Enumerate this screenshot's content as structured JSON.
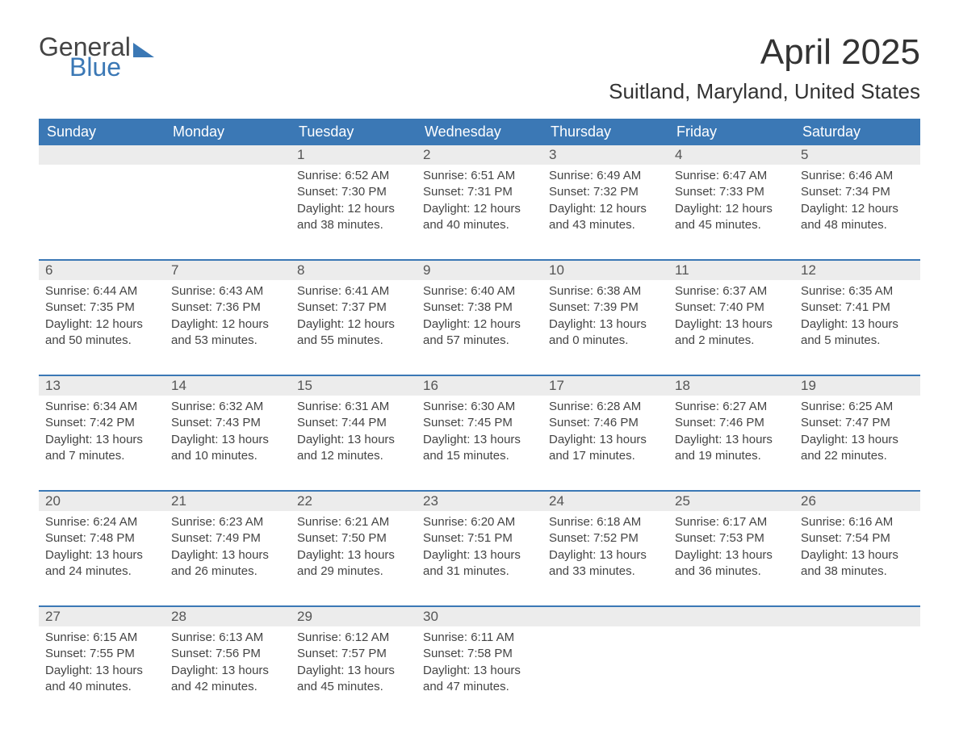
{
  "logo": {
    "word1": "General",
    "word2": "Blue",
    "color": "#3b78b5"
  },
  "title": "April 2025",
  "location": "Suitland, Maryland, United States",
  "colors": {
    "header_bg": "#3b78b5",
    "header_text": "#ffffff",
    "daynum_bg": "#ececec",
    "border": "#3b78b5",
    "text": "#444444",
    "background": "#ffffff"
  },
  "fonts": {
    "title_size": 44,
    "location_size": 26,
    "header_size": 18,
    "body_size": 15
  },
  "weekdays": [
    "Sunday",
    "Monday",
    "Tuesday",
    "Wednesday",
    "Thursday",
    "Friday",
    "Saturday"
  ],
  "weeks": [
    [
      {
        "day": "",
        "sunrise": "",
        "sunset": "",
        "daylight": ""
      },
      {
        "day": "",
        "sunrise": "",
        "sunset": "",
        "daylight": ""
      },
      {
        "day": "1",
        "sunrise": "Sunrise: 6:52 AM",
        "sunset": "Sunset: 7:30 PM",
        "daylight": "Daylight: 12 hours and 38 minutes."
      },
      {
        "day": "2",
        "sunrise": "Sunrise: 6:51 AM",
        "sunset": "Sunset: 7:31 PM",
        "daylight": "Daylight: 12 hours and 40 minutes."
      },
      {
        "day": "3",
        "sunrise": "Sunrise: 6:49 AM",
        "sunset": "Sunset: 7:32 PM",
        "daylight": "Daylight: 12 hours and 43 minutes."
      },
      {
        "day": "4",
        "sunrise": "Sunrise: 6:47 AM",
        "sunset": "Sunset: 7:33 PM",
        "daylight": "Daylight: 12 hours and 45 minutes."
      },
      {
        "day": "5",
        "sunrise": "Sunrise: 6:46 AM",
        "sunset": "Sunset: 7:34 PM",
        "daylight": "Daylight: 12 hours and 48 minutes."
      }
    ],
    [
      {
        "day": "6",
        "sunrise": "Sunrise: 6:44 AM",
        "sunset": "Sunset: 7:35 PM",
        "daylight": "Daylight: 12 hours and 50 minutes."
      },
      {
        "day": "7",
        "sunrise": "Sunrise: 6:43 AM",
        "sunset": "Sunset: 7:36 PM",
        "daylight": "Daylight: 12 hours and 53 minutes."
      },
      {
        "day": "8",
        "sunrise": "Sunrise: 6:41 AM",
        "sunset": "Sunset: 7:37 PM",
        "daylight": "Daylight: 12 hours and 55 minutes."
      },
      {
        "day": "9",
        "sunrise": "Sunrise: 6:40 AM",
        "sunset": "Sunset: 7:38 PM",
        "daylight": "Daylight: 12 hours and 57 minutes."
      },
      {
        "day": "10",
        "sunrise": "Sunrise: 6:38 AM",
        "sunset": "Sunset: 7:39 PM",
        "daylight": "Daylight: 13 hours and 0 minutes."
      },
      {
        "day": "11",
        "sunrise": "Sunrise: 6:37 AM",
        "sunset": "Sunset: 7:40 PM",
        "daylight": "Daylight: 13 hours and 2 minutes."
      },
      {
        "day": "12",
        "sunrise": "Sunrise: 6:35 AM",
        "sunset": "Sunset: 7:41 PM",
        "daylight": "Daylight: 13 hours and 5 minutes."
      }
    ],
    [
      {
        "day": "13",
        "sunrise": "Sunrise: 6:34 AM",
        "sunset": "Sunset: 7:42 PM",
        "daylight": "Daylight: 13 hours and 7 minutes."
      },
      {
        "day": "14",
        "sunrise": "Sunrise: 6:32 AM",
        "sunset": "Sunset: 7:43 PM",
        "daylight": "Daylight: 13 hours and 10 minutes."
      },
      {
        "day": "15",
        "sunrise": "Sunrise: 6:31 AM",
        "sunset": "Sunset: 7:44 PM",
        "daylight": "Daylight: 13 hours and 12 minutes."
      },
      {
        "day": "16",
        "sunrise": "Sunrise: 6:30 AM",
        "sunset": "Sunset: 7:45 PM",
        "daylight": "Daylight: 13 hours and 15 minutes."
      },
      {
        "day": "17",
        "sunrise": "Sunrise: 6:28 AM",
        "sunset": "Sunset: 7:46 PM",
        "daylight": "Daylight: 13 hours and 17 minutes."
      },
      {
        "day": "18",
        "sunrise": "Sunrise: 6:27 AM",
        "sunset": "Sunset: 7:46 PM",
        "daylight": "Daylight: 13 hours and 19 minutes."
      },
      {
        "day": "19",
        "sunrise": "Sunrise: 6:25 AM",
        "sunset": "Sunset: 7:47 PM",
        "daylight": "Daylight: 13 hours and 22 minutes."
      }
    ],
    [
      {
        "day": "20",
        "sunrise": "Sunrise: 6:24 AM",
        "sunset": "Sunset: 7:48 PM",
        "daylight": "Daylight: 13 hours and 24 minutes."
      },
      {
        "day": "21",
        "sunrise": "Sunrise: 6:23 AM",
        "sunset": "Sunset: 7:49 PM",
        "daylight": "Daylight: 13 hours and 26 minutes."
      },
      {
        "day": "22",
        "sunrise": "Sunrise: 6:21 AM",
        "sunset": "Sunset: 7:50 PM",
        "daylight": "Daylight: 13 hours and 29 minutes."
      },
      {
        "day": "23",
        "sunrise": "Sunrise: 6:20 AM",
        "sunset": "Sunset: 7:51 PM",
        "daylight": "Daylight: 13 hours and 31 minutes."
      },
      {
        "day": "24",
        "sunrise": "Sunrise: 6:18 AM",
        "sunset": "Sunset: 7:52 PM",
        "daylight": "Daylight: 13 hours and 33 minutes."
      },
      {
        "day": "25",
        "sunrise": "Sunrise: 6:17 AM",
        "sunset": "Sunset: 7:53 PM",
        "daylight": "Daylight: 13 hours and 36 minutes."
      },
      {
        "day": "26",
        "sunrise": "Sunrise: 6:16 AM",
        "sunset": "Sunset: 7:54 PM",
        "daylight": "Daylight: 13 hours and 38 minutes."
      }
    ],
    [
      {
        "day": "27",
        "sunrise": "Sunrise: 6:15 AM",
        "sunset": "Sunset: 7:55 PM",
        "daylight": "Daylight: 13 hours and 40 minutes."
      },
      {
        "day": "28",
        "sunrise": "Sunrise: 6:13 AM",
        "sunset": "Sunset: 7:56 PM",
        "daylight": "Daylight: 13 hours and 42 minutes."
      },
      {
        "day": "29",
        "sunrise": "Sunrise: 6:12 AM",
        "sunset": "Sunset: 7:57 PM",
        "daylight": "Daylight: 13 hours and 45 minutes."
      },
      {
        "day": "30",
        "sunrise": "Sunrise: 6:11 AM",
        "sunset": "Sunset: 7:58 PM",
        "daylight": "Daylight: 13 hours and 47 minutes."
      },
      {
        "day": "",
        "sunrise": "",
        "sunset": "",
        "daylight": ""
      },
      {
        "day": "",
        "sunrise": "",
        "sunset": "",
        "daylight": ""
      },
      {
        "day": "",
        "sunrise": "",
        "sunset": "",
        "daylight": ""
      }
    ]
  ]
}
